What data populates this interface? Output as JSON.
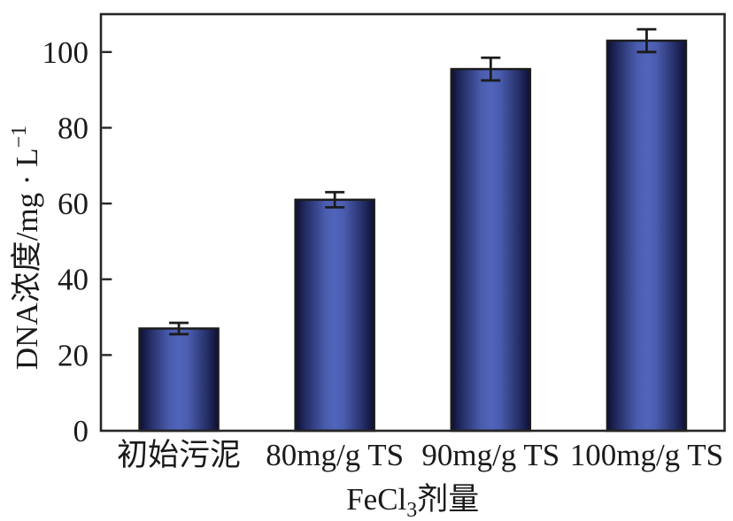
{
  "chart_data": {
    "type": "bar",
    "title": "",
    "categories": [
      "初始污泥",
      "80mg/g TS",
      "90mg/g TS",
      "100mg/g TS"
    ],
    "values": [
      27,
      61,
      95.5,
      103
    ],
    "errors": [
      1.5,
      2,
      3,
      3
    ],
    "yticks": [
      "0",
      "20",
      "40",
      "60",
      "80",
      "100"
    ],
    "ytick_values": [
      0,
      20,
      40,
      60,
      80,
      100
    ],
    "ylim": [
      0,
      110
    ],
    "xlabel": {
      "text": "FeCl3剂量",
      "base": "FeCl",
      "subscript": "3",
      "suffix": "剂量"
    },
    "ylabel": {
      "text": "DNA浓度/mg · L−1",
      "base": "DNA浓度/mg · L",
      "superscript": "−1"
    },
    "grid": false,
    "legend": null,
    "colors": {
      "background": "#ffffff",
      "axis": "#262626",
      "text": "#1a1a1a",
      "bar_outline": "#1c1c1c",
      "error_bar": "#1c1c1c",
      "bar_gradient_stops": [
        {
          "offset": 0,
          "color": "#0d0f33"
        },
        {
          "offset": 13,
          "color": "#232c63"
        },
        {
          "offset": 38,
          "color": "#4a5cae"
        },
        {
          "offset": 50,
          "color": "#5064bb"
        },
        {
          "offset": 62,
          "color": "#4a5cae"
        },
        {
          "offset": 87,
          "color": "#232c63"
        },
        {
          "offset": 100,
          "color": "#0d0f33"
        }
      ]
    }
  }
}
